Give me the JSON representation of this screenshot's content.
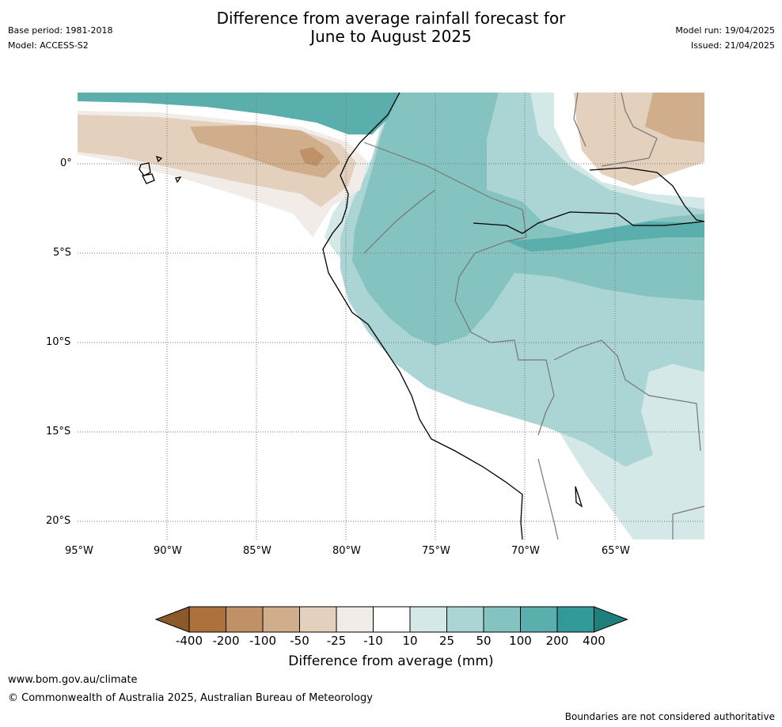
{
  "header": {
    "title_line1": "Difference from average rainfall forecast for",
    "title_line2": "June to August 2025",
    "base_period": "Base period: 1981-2018",
    "model": "Model: ACCESS-S2",
    "model_run": "Model run: 19/04/2025",
    "issued": "Issued: 21/04/2025"
  },
  "map": {
    "lon_labels": [
      "95°W",
      "90°W",
      "85°W",
      "80°W",
      "75°W",
      "70°W",
      "65°W"
    ],
    "lat_labels": [
      "0°",
      "5°S",
      "10°S",
      "15°S",
      "20°S"
    ],
    "gridlines": true
  },
  "colorbar": {
    "title": "Difference from average (mm)",
    "tick_labels": [
      "-400",
      "-200",
      "-100",
      "-50",
      "-25",
      "-10",
      "10",
      "25",
      "50",
      "100",
      "200",
      "400"
    ],
    "colors": [
      "#8c5a2a",
      "#ac713d",
      "#c09167",
      "#d0ad8b",
      "#e3d0bd",
      "#f1ece8",
      "#ffffff",
      "#d4e8e7",
      "#aad5d4",
      "#85c3c1",
      "#5aaeab",
      "#339b97",
      "#1f7f7b"
    ]
  },
  "footer": {
    "url": "www.bom.gov.au/climate",
    "copyright": "© Commonwealth of Australia 2025, Australian Bureau of Meteorology",
    "disclaimer": "Boundaries are not considered authoritative"
  }
}
